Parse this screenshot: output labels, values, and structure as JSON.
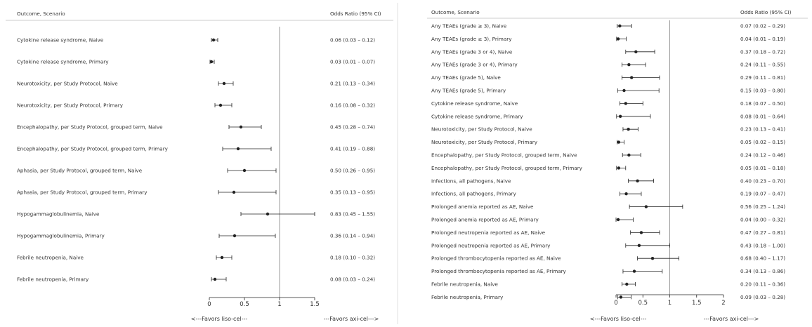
{
  "colors": {
    "ink": "#222222",
    "ref_line": "#999999",
    "rule": "#cccccc",
    "text": "#333333"
  },
  "chart_data": [
    {
      "type": "forest",
      "header_left": "Outcome, Scenario",
      "header_right": "Odds Ratio (95% CI)",
      "favors_left": "<---Favors liso-cel---",
      "favors_right": "---Favors axi-cel--->",
      "xlim": [
        0,
        1.5
      ],
      "xticks": [
        0,
        0.5,
        1,
        1.5
      ],
      "reference_line": 1,
      "rows": [
        {
          "label": "Cytokine release syndrome, Naive",
          "or": 0.06,
          "lo": 0.03,
          "hi": 0.12,
          "ci_text": "0.06 (0.03 – 0.12)"
        },
        {
          "label": "Cytokine release syndrome, Primary",
          "or": 0.03,
          "lo": 0.01,
          "hi": 0.07,
          "ci_text": "0.03 (0.01 – 0.07)"
        },
        {
          "label": "Neurotoxicity, per Study Protocol, Naive",
          "or": 0.21,
          "lo": 0.13,
          "hi": 0.34,
          "ci_text": "0.21 (0.13 – 0.34)"
        },
        {
          "label": "Neurotoxicity, per Study Protocol, Primary",
          "or": 0.16,
          "lo": 0.08,
          "hi": 0.32,
          "ci_text": "0.16 (0.08 – 0.32)"
        },
        {
          "label": "Encephalopathy, per Study Protocol, grouped term, Naive",
          "or": 0.45,
          "lo": 0.28,
          "hi": 0.74,
          "ci_text": "0.45 (0.28 – 0.74)"
        },
        {
          "label": "Encephalopathy, per Study Protocol, grouped term, Primary",
          "or": 0.41,
          "lo": 0.19,
          "hi": 0.88,
          "ci_text": "0.41 (0.19 – 0.88)"
        },
        {
          "label": "Aphasia, per Study Protocol, grouped term, Naive",
          "or": 0.5,
          "lo": 0.26,
          "hi": 0.95,
          "ci_text": "0.50 (0.26 – 0.95)"
        },
        {
          "label": "Aphasia, per Study Protocol, grouped term, Primary",
          "or": 0.35,
          "lo": 0.13,
          "hi": 0.95,
          "ci_text": "0.35 (0.13 – 0.95)"
        },
        {
          "label": "Hypogammaglobulinemia, Naive",
          "or": 0.83,
          "lo": 0.45,
          "hi": 1.55,
          "ci_text": "0.83 (0.45 – 1.55)"
        },
        {
          "label": "Hypogammaglobulinemia, Primary",
          "or": 0.36,
          "lo": 0.14,
          "hi": 0.94,
          "ci_text": "0.36 (0.14 – 0.94)"
        },
        {
          "label": "Febrile neutropenia, Naive",
          "or": 0.18,
          "lo": 0.1,
          "hi": 0.32,
          "ci_text": "0.18 (0.10 – 0.32)"
        },
        {
          "label": "Febrile neutropenia, Primary",
          "or": 0.08,
          "lo": 0.03,
          "hi": 0.24,
          "ci_text": "0.08 (0.03 – 0.24)"
        }
      ]
    },
    {
      "type": "forest",
      "header_left": "Outcome, Scenario",
      "header_right": "Odds Ratio (95% CI)",
      "favors_left": "<---Favors liso-cel---",
      "favors_right": "---Favors axi-cel--->",
      "xlim": [
        0,
        2
      ],
      "xticks": [
        0,
        0.5,
        1,
        1.5,
        2
      ],
      "reference_line": 1,
      "rows": [
        {
          "label": "Any TEAEs (grade ≥ 3), Naive",
          "or": 0.07,
          "lo": 0.02,
          "hi": 0.29,
          "ci_text": "0.07 (0.02 – 0.29)"
        },
        {
          "label": "Any TEAEs (grade ≥ 3), Primary",
          "or": 0.04,
          "lo": 0.01,
          "hi": 0.19,
          "ci_text": "0.04 (0.01 – 0.19)"
        },
        {
          "label": "Any TEAEs (grade 3 or 4), Naive",
          "or": 0.37,
          "lo": 0.18,
          "hi": 0.72,
          "ci_text": "0.37 (0.18 – 0.72)"
        },
        {
          "label": "Any TEAEs (grade 3 or 4), Primary",
          "or": 0.24,
          "lo": 0.11,
          "hi": 0.55,
          "ci_text": "0.24 (0.11 – 0.55)"
        },
        {
          "label": "Any TEAEs (grade 5), Naive",
          "or": 0.29,
          "lo": 0.11,
          "hi": 0.81,
          "ci_text": "0.29 (0.11 – 0.81)"
        },
        {
          "label": "Any TEAEs (grade 5), Primary",
          "or": 0.15,
          "lo": 0.03,
          "hi": 0.8,
          "ci_text": "0.15 (0.03 – 0.80)"
        },
        {
          "label": "Cytokine release syndrome, Naive",
          "or": 0.18,
          "lo": 0.07,
          "hi": 0.5,
          "ci_text": "0.18 (0.07 – 0.50)"
        },
        {
          "label": "Cytokine release syndrome, Primary",
          "or": 0.08,
          "lo": 0.01,
          "hi": 0.64,
          "ci_text": "0.08 (0.01 – 0.64)"
        },
        {
          "label": "Neurotoxicity, per Study Protocol, Naive",
          "or": 0.23,
          "lo": 0.13,
          "hi": 0.41,
          "ci_text": "0.23 (0.13 – 0.41)"
        },
        {
          "label": "Neurotoxicity, per Study Protocol, Primary",
          "or": 0.05,
          "lo": 0.02,
          "hi": 0.15,
          "ci_text": "0.05 (0.02 – 0.15)"
        },
        {
          "label": "Encephalopathy, per Study Protocol, grouped term, Naive",
          "or": 0.24,
          "lo": 0.12,
          "hi": 0.46,
          "ci_text": "0.24 (0.12 – 0.46)"
        },
        {
          "label": "Encephalopathy, per Study Protocol, grouped term, Primary",
          "or": 0.05,
          "lo": 0.01,
          "hi": 0.18,
          "ci_text": "0.05 (0.01 – 0.18)"
        },
        {
          "label": "Infections, all pathogens, Naive",
          "or": 0.4,
          "lo": 0.23,
          "hi": 0.7,
          "ci_text": "0.40 (0.23 – 0.70)"
        },
        {
          "label": "Infections, all pathogens, Primary",
          "or": 0.19,
          "lo": 0.07,
          "hi": 0.47,
          "ci_text": "0.19 (0.07 – 0.47)"
        },
        {
          "label": "Prolonged anemia reported as AE, Naive",
          "or": 0.56,
          "lo": 0.25,
          "hi": 1.24,
          "ci_text": "0.56 (0.25 – 1.24)"
        },
        {
          "label": "Prolonged anemia reported as AE, Primary",
          "or": 0.04,
          "lo": 0.0,
          "hi": 0.32,
          "ci_text": "0.04 (0.00 – 0.32)"
        },
        {
          "label": "Prolonged neutropenia reported as AE, Naive",
          "or": 0.47,
          "lo": 0.27,
          "hi": 0.81,
          "ci_text": "0.47 (0.27 – 0.81)"
        },
        {
          "label": "Prolonged neutropenia reported as AE, Primary",
          "or": 0.43,
          "lo": 0.18,
          "hi": 1.0,
          "ci_text": "0.43 (0.18 – 1.00)"
        },
        {
          "label": "Prolonged thrombocytopenia reported as AE, Naive",
          "or": 0.68,
          "lo": 0.4,
          "hi": 1.17,
          "ci_text": "0.68 (0.40 – 1.17)"
        },
        {
          "label": "Prolonged thrombocytopenia reported as AE, Primary",
          "or": 0.34,
          "lo": 0.13,
          "hi": 0.86,
          "ci_text": "0.34 (0.13 – 0.86)"
        },
        {
          "label": "Febrile neutropenia, Naive",
          "or": 0.2,
          "lo": 0.11,
          "hi": 0.36,
          "ci_text": "0.20 (0.11 – 0.36)"
        },
        {
          "label": "Febrile neutropenia, Primary",
          "or": 0.09,
          "lo": 0.03,
          "hi": 0.28,
          "ci_text": "0.09 (0.03 – 0.28)"
        }
      ]
    }
  ]
}
